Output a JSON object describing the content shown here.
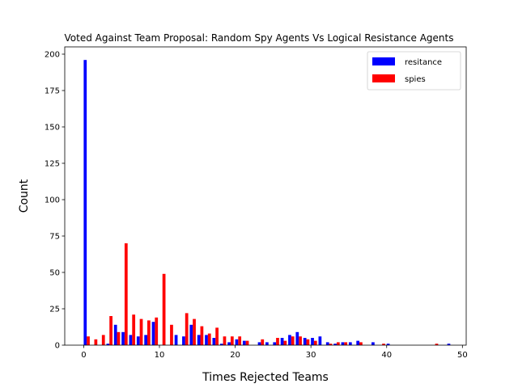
{
  "chart_data": {
    "type": "bar",
    "title": "Voted Against Team Proposal: Random Spy Agents Vs Logical Resistance Agents",
    "xlabel": "Times Rejected Teams",
    "ylabel": "Count",
    "xlim": [
      -2.5,
      50.5
    ],
    "ylim": [
      0,
      205
    ],
    "xticks": [
      0,
      10,
      20,
      30,
      40,
      50
    ],
    "yticks": [
      0,
      25,
      50,
      75,
      100,
      125,
      150,
      175,
      200
    ],
    "legend_position": "top-right",
    "grid": false,
    "x": [
      0,
      1,
      2,
      3,
      4,
      5,
      6,
      7,
      8,
      9,
      10,
      11,
      12,
      13,
      14,
      15,
      16,
      17,
      18,
      19,
      20,
      21,
      22,
      23,
      24,
      25,
      26,
      27,
      28,
      29,
      30,
      31,
      32,
      33,
      34,
      35,
      36,
      37,
      38,
      39,
      40,
      41,
      42,
      43,
      44,
      45,
      46,
      47,
      48
    ],
    "series": [
      {
        "name": "resitance",
        "color": "#0000ff",
        "values": [
          196,
          0,
          0,
          1,
          14,
          9,
          7,
          6,
          7,
          16,
          0,
          0,
          7,
          6,
          14,
          7,
          7,
          5,
          1,
          2,
          4,
          3,
          0,
          2,
          2,
          2,
          5,
          7,
          9,
          5,
          5,
          6,
          2,
          1,
          2,
          2,
          3,
          0,
          2,
          0,
          1,
          0,
          0,
          0,
          0,
          0,
          0,
          0,
          1
        ]
      },
      {
        "name": "spies",
        "color": "#ff0000",
        "values": [
          6,
          4,
          7,
          20,
          9,
          70,
          21,
          18,
          17,
          19,
          49,
          14,
          0,
          22,
          18,
          13,
          8,
          12,
          6,
          6,
          6,
          3,
          0,
          4,
          0,
          5,
          3,
          6,
          6,
          4,
          3,
          0,
          1,
          2,
          2,
          0,
          2,
          0,
          0,
          1,
          0,
          0,
          0,
          0,
          0,
          0,
          1,
          0,
          0
        ]
      }
    ]
  }
}
